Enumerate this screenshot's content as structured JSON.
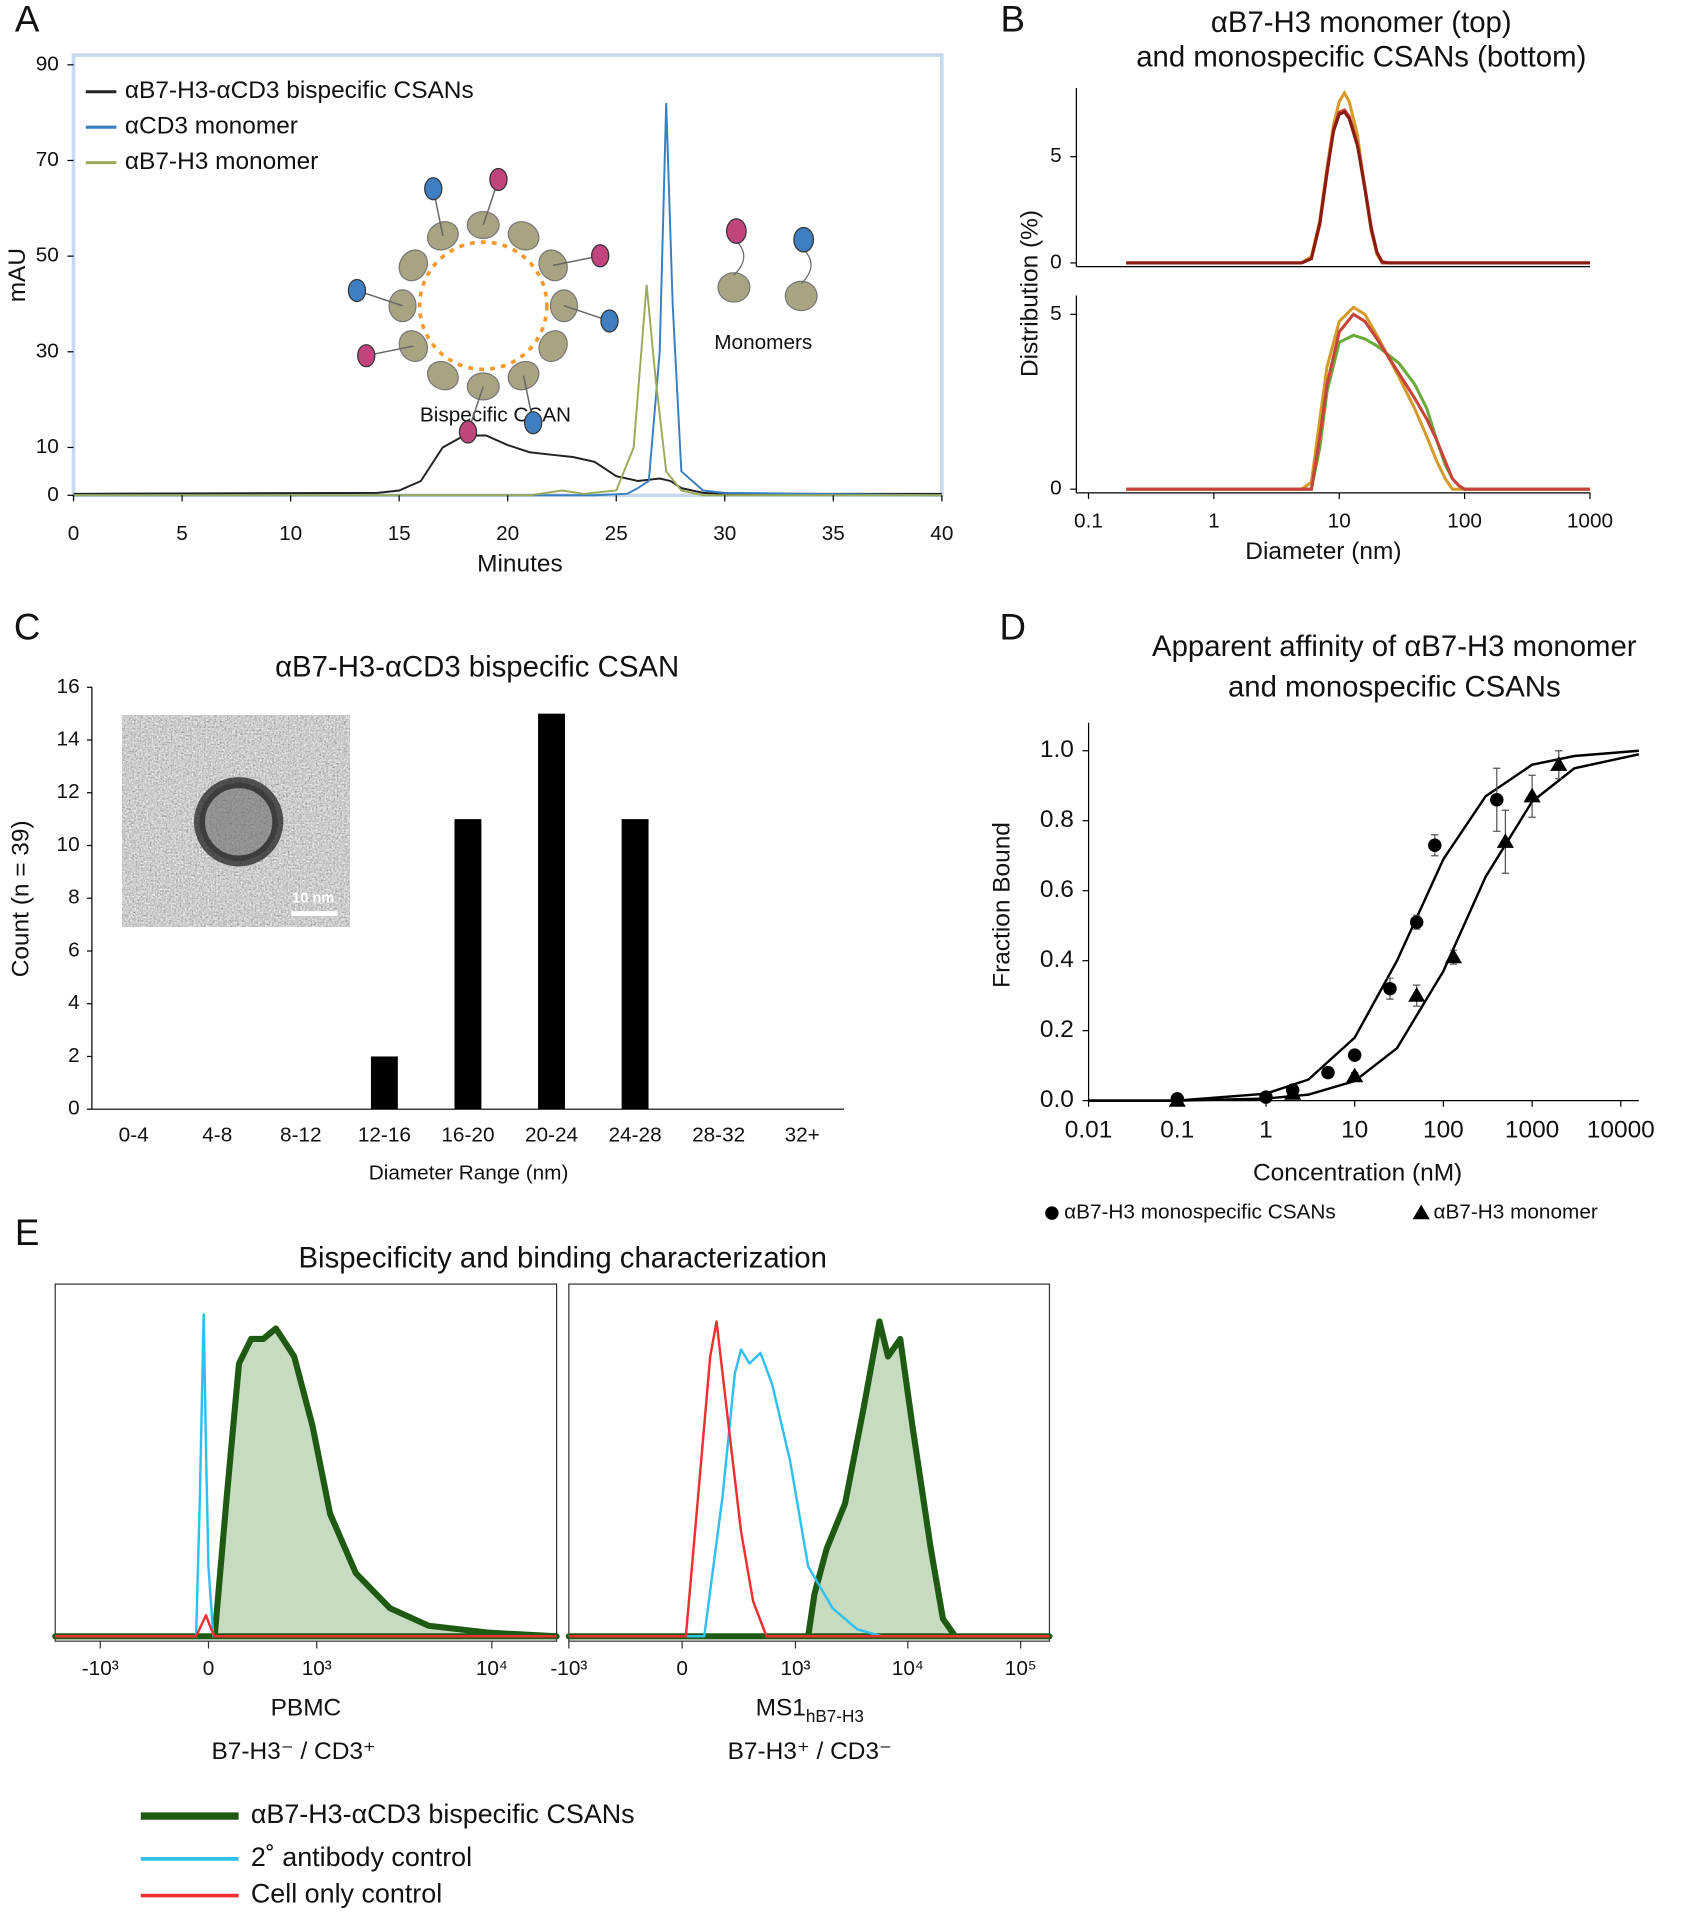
{
  "chart_data": [
    {
      "type": "line",
      "panel_label": "A",
      "xlabel": "Minutes",
      "ylabel": "mAU",
      "xlim": [
        0,
        40
      ],
      "xticks": [
        0,
        5,
        10,
        15,
        20,
        25,
        30,
        35,
        40
      ],
      "ylim": [
        0,
        90
      ],
      "yticks": [
        0,
        10,
        30,
        50,
        70,
        90
      ],
      "legend": "upper left",
      "annotations": [
        "Bispecific CSAN",
        "Monomers"
      ],
      "series": [
        {
          "name": "αB7-H3-αCD3 bispecific CSANs",
          "color": "#222222",
          "x": [
            0,
            14,
            15,
            16,
            17,
            18,
            19,
            20,
            21,
            22,
            23,
            24,
            25,
            26,
            27,
            27.5,
            28,
            29,
            30,
            40
          ],
          "values": [
            0.3,
            0.5,
            1,
            3,
            10,
            12.5,
            12.5,
            10.5,
            9,
            8.5,
            8,
            7,
            4,
            3,
            3.5,
            3,
            1.5,
            0.5,
            0.3,
            0.3
          ]
        },
        {
          "name": "αCD3 monomer",
          "color": "#3a7fc0",
          "x": [
            0,
            24,
            25.5,
            26,
            26.5,
            27,
            27.3,
            27.6,
            28,
            29,
            30,
            40
          ],
          "values": [
            0,
            0,
            0.3,
            1.5,
            3,
            30,
            82,
            40,
            5,
            1,
            0.5,
            0
          ]
        },
        {
          "name": "αB7-H3 monomer",
          "color": "#9aab5a",
          "x": [
            0,
            21,
            22.5,
            23.5,
            25,
            25.8,
            26.4,
            26.8,
            27.3,
            28,
            29,
            40
          ],
          "values": [
            0,
            0,
            1,
            0.3,
            1,
            10,
            44,
            25,
            5,
            1,
            0,
            0
          ]
        }
      ]
    },
    {
      "type": "line",
      "panel_label": "B",
      "title": [
        "αB7-H3 monomer (top)",
        "and monospecific CSANs (bottom)"
      ],
      "xlabel": "Diameter (nm)",
      "ylabel": "Distribution (%)",
      "xscale": "log",
      "xlim": [
        0.08,
        1000
      ],
      "xticks": [
        0.1,
        1,
        10,
        100,
        1000
      ],
      "subplots": [
        {
          "ylim": [
            0,
            8
          ],
          "yticks": [
            0,
            5
          ],
          "series": [
            {
              "color": "#d49a2a",
              "x": [
                0.2,
                1,
                5,
                6,
                7,
                8,
                9,
                10,
                11,
                12,
                14,
                16,
                18,
                20,
                22,
                25,
                100,
                1000
              ],
              "values": [
                0,
                0,
                0,
                0.3,
                2,
                4.5,
                6.5,
                7.6,
                8,
                7.6,
                6,
                3.5,
                1.5,
                0.4,
                0,
                0,
                0,
                0
              ]
            },
            {
              "color": "#c8443a",
              "x": [
                0.2,
                1,
                5,
                6,
                7,
                8,
                9,
                10,
                11,
                12,
                14,
                16,
                18,
                20,
                22,
                25,
                100,
                1000
              ],
              "values": [
                0,
                0,
                0,
                0.2,
                1.8,
                4.2,
                6.3,
                7.1,
                7.2,
                6.9,
                5.6,
                3.6,
                1.7,
                0.5,
                0,
                0,
                0,
                0
              ]
            },
            {
              "color": "#8a1a12",
              "x": [
                0.2,
                1,
                5,
                6,
                7,
                8,
                9,
                10,
                11,
                12,
                14,
                16,
                18,
                20,
                22,
                25,
                100,
                1000
              ],
              "values": [
                0,
                0,
                0,
                0.2,
                1.9,
                4.3,
                6.2,
                7,
                7.1,
                6.8,
                5.5,
                3.5,
                1.6,
                0.5,
                0.05,
                0,
                0,
                0
              ]
            }
          ]
        },
        {
          "ylim": [
            0,
            5.4
          ],
          "yticks": [
            0,
            5
          ],
          "series": [
            {
              "color": "#d49a2a",
              "x": [
                0.2,
                1,
                5,
                6,
                7,
                8,
                10,
                13,
                16,
                20,
                30,
                40,
                50,
                60,
                70,
                80,
                90,
                100,
                1000
              ],
              "values": [
                0,
                0,
                0,
                0.2,
                2,
                3.5,
                4.8,
                5.2,
                5,
                4.4,
                3.2,
                2.3,
                1.5,
                0.8,
                0.3,
                0,
                0,
                0,
                0
              ]
            },
            {
              "color": "#6aaa3a",
              "x": [
                0.2,
                1,
                5,
                6,
                7,
                8,
                10,
                13,
                16,
                20,
                30,
                40,
                50,
                60,
                70,
                80,
                90,
                100,
                1000
              ],
              "values": [
                0,
                0,
                0,
                0,
                1.2,
                2.8,
                4.2,
                4.4,
                4.3,
                4.1,
                3.6,
                3,
                2.3,
                1.4,
                0.7,
                0.3,
                0.1,
                0,
                0
              ]
            },
            {
              "color": "#c8443a",
              "x": [
                0.2,
                1,
                5,
                6,
                7,
                8,
                10,
                13,
                16,
                20,
                30,
                40,
                50,
                60,
                70,
                80,
                90,
                100,
                1000
              ],
              "values": [
                0,
                0,
                0,
                0,
                1.5,
                3,
                4.5,
                5,
                4.8,
                4.3,
                3.3,
                2.6,
                2,
                1.4,
                0.8,
                0.3,
                0.1,
                0,
                0
              ]
            }
          ]
        }
      ]
    },
    {
      "type": "bar",
      "panel_label": "C",
      "title": "αB7-H3-αCD3 bispecific CSAN",
      "xlabel": "Diameter Range (nm)",
      "ylabel": "Count (n = 39)",
      "inset_label": "10 nm",
      "categories": [
        "0-4",
        "4-8",
        "8-12",
        "12-16",
        "16-20",
        "20-24",
        "24-28",
        "28-32",
        "32+"
      ],
      "values": [
        0,
        0,
        0,
        2,
        11,
        15,
        11,
        0,
        0
      ],
      "color": "#000000",
      "ylim": [
        0,
        16
      ],
      "yticks": [
        0,
        2,
        4,
        6,
        8,
        10,
        12,
        14,
        16
      ]
    },
    {
      "type": "scatter",
      "panel_label": "D",
      "title": [
        "Apparent affinity of αB7-H3 monomer",
        "and monospecific CSANs"
      ],
      "xlabel": "Concentration (nM)",
      "ylabel": "Fraction Bound",
      "xscale": "log",
      "xlim": [
        0.01,
        16000
      ],
      "xticks": [
        0.01,
        0.1,
        1,
        10,
        100,
        1000,
        10000
      ],
      "ylim": [
        0,
        1.08
      ],
      "yticks": [
        {
          "value": 0,
          "label": "0.0"
        },
        0.2,
        0.4,
        0.6,
        0.8,
        {
          "value": 1,
          "label": "1.0"
        }
      ],
      "series": [
        {
          "name": "αB7-H3 monospecific CSANs",
          "marker": "circle",
          "color": "#000000",
          "x": [
            0.1,
            1,
            2,
            5,
            10,
            25,
            50,
            80,
            400
          ],
          "values": [
            0.005,
            0.01,
            0.03,
            0.08,
            0.13,
            0.32,
            0.51,
            0.73,
            0.86
          ],
          "errors": [
            0.01,
            0.005,
            0.005,
            0.005,
            0.01,
            0.03,
            0.02,
            0.03,
            0.09
          ]
        },
        {
          "name": "αB7-H3 monomer",
          "marker": "triangle",
          "color": "#000000",
          "x": [
            0.1,
            2,
            10,
            50,
            130,
            500,
            1000,
            2000
          ],
          "values": [
            0,
            0.02,
            0.07,
            0.3,
            0.41,
            0.74,
            0.87,
            0.96
          ],
          "errors": [
            0.005,
            0.005,
            0.01,
            0.03,
            0.02,
            0.09,
            0.06,
            0.04
          ]
        }
      ],
      "fits": [
        {
          "color": "#000000",
          "x": [
            0.01,
            0.1,
            1,
            3,
            10,
            30,
            100,
            300,
            1000,
            3000,
            16000
          ],
          "values": [
            0,
            0,
            0.02,
            0.06,
            0.18,
            0.4,
            0.69,
            0.87,
            0.96,
            0.985,
            1
          ]
        },
        {
          "color": "#000000",
          "x": [
            0.01,
            0.1,
            1,
            3,
            10,
            30,
            100,
            300,
            1000,
            3000,
            16000
          ],
          "values": [
            0,
            0,
            0.006,
            0.017,
            0.056,
            0.15,
            0.37,
            0.64,
            0.855,
            0.95,
            0.99
          ]
        }
      ]
    },
    {
      "type": "area",
      "panel_label": "E",
      "title": "Bispecificity and binding characterization",
      "xscale": "biex",
      "ylim": [
        0,
        100
      ],
      "series": [
        {
          "name": "αB7-H3-αCD3 bispecific CSANs",
          "color": "#1e5a12",
          "fill": "#c6dbc0"
        },
        {
          "name": "2˚ antibody control",
          "color": "#30c0f0"
        },
        {
          "name": "Cell only control",
          "color": "#f03030"
        }
      ],
      "panels": [
        {
          "label": "PBMC",
          "sublabel": "B7-H3⁻ / CD3⁺",
          "linear_width": 535,
          "xlim": [
            -1860,
            22900
          ],
          "xticks": [
            {
              "value": -1000,
              "label": "-10³"
            },
            0,
            {
              "value": 1000,
              "label": "10³"
            },
            {
              "value": 10000,
              "label": "10⁴"
            }
          ],
          "series": [
            {
              "x": [
                -1860,
                42,
                126,
                214,
                306,
                406,
                520,
                711,
                942,
                1210,
                1720,
                2700,
                4450,
                9700,
                22900
              ],
              "values": [
                0,
                0,
                40,
                78,
                85,
                85,
                88,
                80,
                60,
                35,
                18,
                8,
                3,
                1,
                0
              ]
            },
            {
              "x": [
                -1860,
                -85,
                -59,
                -33,
                -15,
                0,
                33,
                22900
              ],
              "values": [
                0,
                0,
                40,
                92,
                50,
                20,
                0,
                0
              ]
            },
            {
              "x": [
                -1860,
                -85,
                -40,
                -17,
                10,
                40,
                22900
              ],
              "values": [
                0,
                0,
                4,
                6,
                3,
                0,
                0
              ]
            }
          ]
        },
        {
          "label": "MS1",
          "label_sub": "hB7-H3",
          "sublabel": "B7-H3⁺ / CD3⁻",
          "linear_width": 200,
          "xlim": [
            -1000,
            180000
          ],
          "xticks": [
            {
              "value": -1000,
              "label": "-10³"
            },
            0,
            {
              "value": 1000,
              "label": "10³"
            },
            {
              "value": 10000,
              "label": "10⁴"
            },
            {
              "value": 100000,
              "label": "10⁵"
            }
          ],
          "series": [
            {
              "x": [
                -1000,
                1300,
                1480,
                1900,
                2780,
                4040,
                5600,
                6670,
                8560,
                10990,
                15980,
                20500,
                26300,
                180000
              ],
              "values": [
                0,
                0,
                12,
                25,
                38,
                65,
                90,
                80,
                85,
                60,
                25,
                5,
                0,
                0
              ]
            },
            {
              "x": [
                -1000,
                93,
                184,
                259,
                302,
                370,
                474,
                613,
                895,
                1300,
                2150,
                3570,
                5880,
                180000
              ],
              "values": [
                0,
                0,
                40,
                75,
                82,
                78,
                81,
                72,
                50,
                20,
                8,
                2,
                0,
                0
              ]
            },
            {
              "x": [
                -1000,
                15,
                66,
                121,
                152,
                220,
                302,
                402,
                541,
                180000
              ],
              "values": [
                0,
                0,
                40,
                80,
                90,
                60,
                30,
                10,
                0,
                0
              ]
            }
          ]
        }
      ]
    }
  ]
}
